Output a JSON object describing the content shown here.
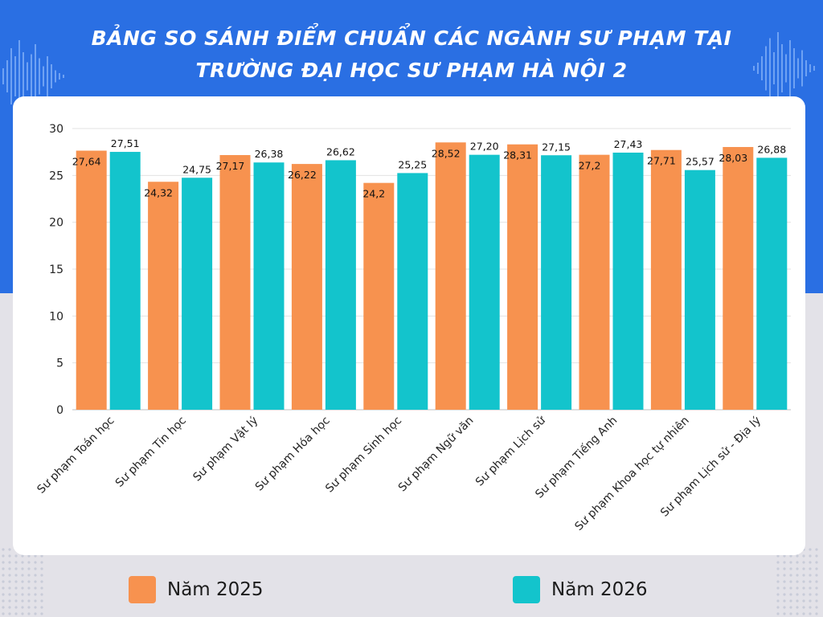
{
  "title_lines": [
    "BẢNG SO SÁNH ĐIỂM CHUẨN CÁC NGÀNH SƯ PHẠM TẠI",
    "TRƯỜNG ĐẠI HỌC SƯ PHẠM HÀ NỘI 2"
  ],
  "colors": {
    "header_blue": "#2a6fe3",
    "series_2025": "#f7924f",
    "series_2026": "#13c4cc"
  },
  "legend": [
    {
      "label": "Năm 2025",
      "color": "#f7924f"
    },
    {
      "label": "Năm 2026",
      "color": "#13c4cc"
    }
  ],
  "chart_data": {
    "type": "bar",
    "title": "BẢNG SO SÁNH ĐIỂM CHUẨN CÁC NGÀNH SƯ PHẠM TẠI TRƯỜNG ĐẠI HỌC SƯ PHẠM HÀ NỘI 2",
    "categories": [
      "Sư phạm Toán học",
      "Sư phạm Tin học",
      "Sư phạm Vật lý",
      "Sư phạm Hóa học",
      "Sư phạm Sinh học",
      "Sư phạm Ngữ văn",
      "Sư phạm Lịch sử",
      "Sư phạm Tiếng Anh",
      "Sư phạm Khoa học tự nhiên",
      "Sư phạm Lịch sử - Địa lý"
    ],
    "series": [
      {
        "name": "Năm 2025",
        "color": "#f7924f",
        "values": [
          27.64,
          24.32,
          27.17,
          26.22,
          24.2,
          28.52,
          28.31,
          27.2,
          27.71,
          28.03
        ],
        "labels": [
          "27,64",
          "24,32",
          "27,17",
          "26,22",
          "24,2",
          "28,52",
          "28,31",
          "27,2",
          "27,71",
          "28,03"
        ]
      },
      {
        "name": "Năm 2026",
        "color": "#13c4cc",
        "values": [
          27.51,
          24.75,
          26.38,
          26.62,
          25.25,
          27.2,
          27.15,
          27.43,
          25.57,
          26.88
        ],
        "labels": [
          "27,51",
          "24,75",
          "26,38",
          "26,62",
          "25,25",
          "27,20",
          "27,15",
          "27,43",
          "25,57",
          "26,88"
        ]
      }
    ],
    "yticks": [
      "0",
      "5",
      "10",
      "15",
      "20",
      "25",
      "30"
    ],
    "ylim": [
      0,
      30
    ],
    "grid": true,
    "legend_position": "bottom"
  }
}
